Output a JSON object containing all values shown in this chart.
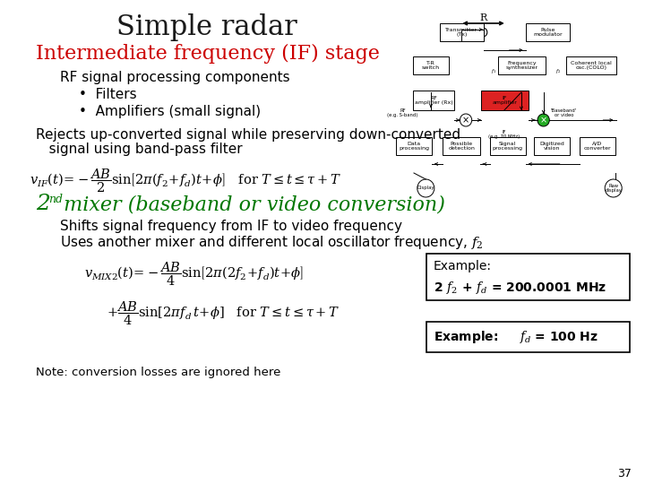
{
  "title": "Simple radar",
  "subtitle_red": "Intermediate frequency (IF) stage",
  "body_text_1": "RF signal processing components",
  "bullet_1": "Filters",
  "bullet_2": "Amplifiers (small signal)",
  "rejects_1": "Rejects up-converted signal while preserving down-converted",
  "rejects_2": "   signal using band-pass filter",
  "section_2nd": "2",
  "section_nd": "nd",
  "section_rest": " mixer (baseband or video conversion)",
  "shifts": "Shifts signal frequency from IF to video frequency",
  "uses": "Uses another mixer and different local oscillator frequency, f",
  "note": "Note: conversion losses are ignored here",
  "ex1_l1": "Example:",
  "ex1_l2": "2 f₂ + fₓ = 200.0001 MHz",
  "ex2": "Example:     fₓ = 100 Hz",
  "page_num": "37",
  "bg_color": "#ffffff",
  "title_color": "#1a1a1a",
  "red_color": "#cc0000",
  "green_color": "#007700",
  "black": "#000000",
  "title_fontsize": 22,
  "red_fontsize": 16,
  "body_fontsize": 11,
  "section_fontsize": 16,
  "formula_fontsize": 10.5
}
